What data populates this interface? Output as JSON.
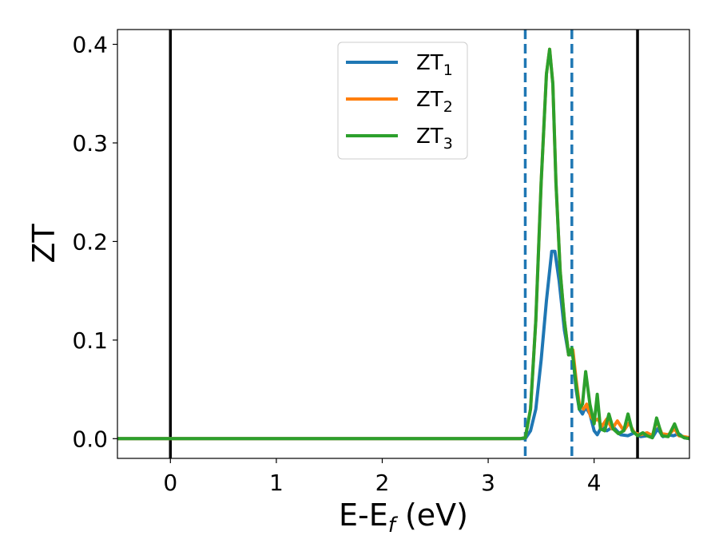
{
  "chart_data": {
    "type": "line",
    "xlabel": "E-E",
    "xlabel_sub": "f",
    "xlabel_unit": " (eV)",
    "ylabel": "ZT",
    "xlim": [
      -0.5,
      4.9
    ],
    "ylim": [
      -0.02,
      0.415
    ],
    "xticks": [
      0,
      1,
      2,
      3,
      4
    ],
    "yticks": [
      0.0,
      0.1,
      0.2,
      0.3,
      0.4
    ],
    "xtick_labels": [
      "0",
      "1",
      "2",
      "3",
      "4"
    ],
    "ytick_labels": [
      "0.0",
      "0.1",
      "0.2",
      "0.3",
      "0.4"
    ],
    "grid": false,
    "legend_position": "top-center",
    "vlines": [
      {
        "x": 0.0,
        "style": "solid",
        "color": "#000000"
      },
      {
        "x": 4.41,
        "style": "solid",
        "color": "#000000"
      },
      {
        "x": 3.35,
        "style": "dashed",
        "color": "#1f77b4"
      },
      {
        "x": 3.79,
        "style": "dashed",
        "color": "#1f77b4"
      }
    ],
    "series": [
      {
        "name": "ZT",
        "name_sub": "1",
        "color": "#1f77b4",
        "x": [
          -0.5,
          3.3,
          3.35,
          3.4,
          3.45,
          3.5,
          3.55,
          3.6,
          3.63,
          3.67,
          3.72,
          3.76,
          3.8,
          3.83,
          3.86,
          3.89,
          3.92,
          3.96,
          4.0,
          4.03,
          4.07,
          4.12,
          4.18,
          4.25,
          4.32,
          4.38,
          4.44,
          4.5,
          4.55,
          4.6,
          4.65,
          4.7,
          4.75,
          4.8,
          4.85,
          4.9
        ],
        "y": [
          0,
          0,
          0.0,
          0.008,
          0.03,
          0.08,
          0.14,
          0.19,
          0.19,
          0.16,
          0.11,
          0.085,
          0.085,
          0.05,
          0.03,
          0.025,
          0.032,
          0.025,
          0.008,
          0.004,
          0.012,
          0.008,
          0.012,
          0.004,
          0.003,
          0.006,
          0.002,
          0.003,
          0.001,
          0.01,
          0.002,
          0.004,
          0.003,
          0.005,
          0.001,
          0.0
        ]
      },
      {
        "name": "ZT",
        "name_sub": "2",
        "color": "#ff7f0e",
        "x": [
          -0.5,
          3.3,
          3.35,
          3.4,
          3.45,
          3.5,
          3.55,
          3.58,
          3.61,
          3.64,
          3.68,
          3.72,
          3.76,
          3.8,
          3.83,
          3.86,
          3.9,
          3.93,
          3.97,
          4.0,
          4.04,
          4.07,
          4.12,
          4.17,
          4.22,
          4.28,
          4.33,
          4.38,
          4.44,
          4.5,
          4.55,
          4.59,
          4.64,
          4.7,
          4.76,
          4.8,
          4.85,
          4.9
        ],
        "y": [
          0,
          0,
          0.001,
          0.03,
          0.12,
          0.26,
          0.37,
          0.395,
          0.36,
          0.26,
          0.17,
          0.12,
          0.085,
          0.09,
          0.06,
          0.035,
          0.03,
          0.035,
          0.022,
          0.018,
          0.02,
          0.012,
          0.02,
          0.01,
          0.018,
          0.008,
          0.016,
          0.006,
          0.004,
          0.006,
          0.003,
          0.018,
          0.005,
          0.004,
          0.01,
          0.003,
          0.002,
          0.001
        ]
      },
      {
        "name": "ZT",
        "name_sub": "3",
        "color": "#2ca02c",
        "x": [
          -0.5,
          3.3,
          3.35,
          3.4,
          3.45,
          3.5,
          3.55,
          3.58,
          3.61,
          3.64,
          3.68,
          3.72,
          3.76,
          3.79,
          3.83,
          3.86,
          3.89,
          3.92,
          3.96,
          4.0,
          4.03,
          4.06,
          4.1,
          4.14,
          4.18,
          4.23,
          4.28,
          4.32,
          4.36,
          4.41,
          4.46,
          4.5,
          4.55,
          4.59,
          4.64,
          4.7,
          4.76,
          4.8,
          4.85,
          4.9
        ],
        "y": [
          0,
          0,
          0.001,
          0.03,
          0.12,
          0.26,
          0.37,
          0.395,
          0.36,
          0.26,
          0.17,
          0.12,
          0.085,
          0.092,
          0.055,
          0.03,
          0.035,
          0.068,
          0.035,
          0.015,
          0.045,
          0.01,
          0.008,
          0.025,
          0.01,
          0.005,
          0.008,
          0.025,
          0.008,
          0.003,
          0.006,
          0.003,
          0.001,
          0.021,
          0.003,
          0.002,
          0.015,
          0.004,
          0.001,
          0.0
        ]
      }
    ]
  }
}
